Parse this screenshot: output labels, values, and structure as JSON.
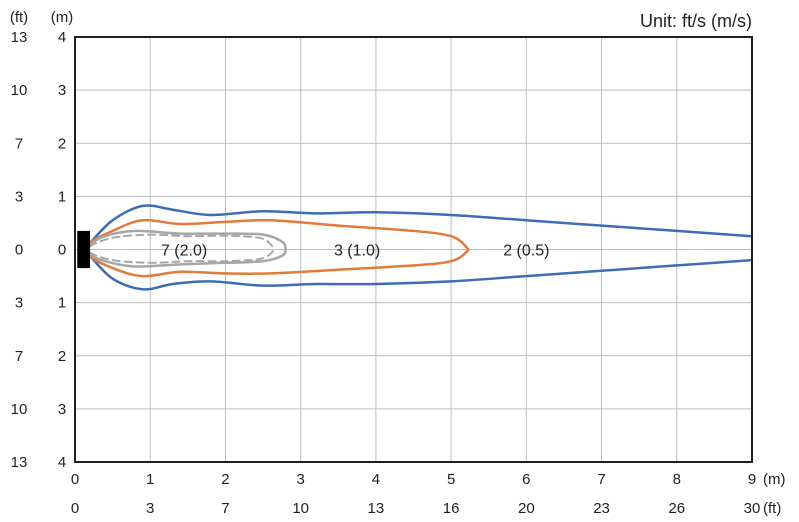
{
  "chart_data": {
    "type": "line",
    "title": "Unit: ft/s (m/s)",
    "x_axis": {
      "unit_primary": "(m)",
      "unit_secondary": "(ft)",
      "range": [
        0,
        9
      ],
      "ticks_m": [
        0,
        1,
        2,
        3,
        4,
        5,
        6,
        7,
        8,
        9
      ],
      "ticks_m_labels": [
        "0",
        "1",
        "2",
        "3",
        "4",
        "5",
        "6",
        "7",
        "8",
        "9"
      ],
      "ticks_ft_labels": [
        "0",
        "3",
        "7",
        "10",
        "13",
        "16",
        "20",
        "23",
        "26",
        "30"
      ]
    },
    "y_axis": {
      "unit_primary": "(m)",
      "unit_secondary": "(ft)",
      "range": [
        -4,
        4
      ],
      "ticks_m": [
        4,
        3,
        2,
        1,
        0,
        -1,
        -2,
        -3,
        -4
      ],
      "ticks_m_labels": [
        "4",
        "3",
        "2",
        "1",
        "0",
        "1",
        "2",
        "3",
        "4"
      ],
      "ticks_ft_labels": [
        "13",
        "10",
        "7",
        "3",
        "0",
        "3",
        "7",
        "10",
        "13"
      ]
    },
    "grid": true,
    "source": {
      "x": [
        0.03,
        0.2
      ],
      "y": [
        -0.35,
        0.35
      ],
      "color": "#000000"
    },
    "series": [
      {
        "name": "2 (0.5)",
        "color": "#3e6db5",
        "style": "solid",
        "closed": false,
        "label_at": [
          6.0,
          0.0
        ],
        "upper": [
          [
            0.2,
            0.12
          ],
          [
            0.5,
            0.55
          ],
          [
            0.9,
            0.82
          ],
          [
            1.3,
            0.75
          ],
          [
            1.8,
            0.65
          ],
          [
            2.5,
            0.72
          ],
          [
            3.2,
            0.68
          ],
          [
            4.0,
            0.7
          ],
          [
            5.0,
            0.65
          ],
          [
            6.0,
            0.55
          ],
          [
            7.0,
            0.45
          ],
          [
            8.0,
            0.35
          ],
          [
            9.0,
            0.25
          ]
        ],
        "lower": [
          [
            0.2,
            -0.12
          ],
          [
            0.5,
            -0.55
          ],
          [
            0.9,
            -0.75
          ],
          [
            1.3,
            -0.65
          ],
          [
            1.8,
            -0.6
          ],
          [
            2.5,
            -0.68
          ],
          [
            3.2,
            -0.65
          ],
          [
            4.0,
            -0.65
          ],
          [
            5.0,
            -0.6
          ],
          [
            6.0,
            -0.5
          ],
          [
            7.0,
            -0.4
          ],
          [
            8.0,
            -0.3
          ],
          [
            9.0,
            -0.2
          ]
        ]
      },
      {
        "name": "3 (1.0)",
        "color": "#e07b39",
        "style": "solid",
        "closed": true,
        "label_at": [
          3.75,
          0.0
        ],
        "outline": [
          [
            0.2,
            0.12
          ],
          [
            0.5,
            0.35
          ],
          [
            0.9,
            0.55
          ],
          [
            1.4,
            0.48
          ],
          [
            2.0,
            0.52
          ],
          [
            2.6,
            0.55
          ],
          [
            3.5,
            0.45
          ],
          [
            4.5,
            0.35
          ],
          [
            5.0,
            0.25
          ],
          [
            5.2,
            0.05
          ],
          [
            5.2,
            -0.05
          ],
          [
            5.0,
            -0.22
          ],
          [
            4.5,
            -0.3
          ],
          [
            3.5,
            -0.38
          ],
          [
            2.6,
            -0.45
          ],
          [
            2.0,
            -0.45
          ],
          [
            1.4,
            -0.42
          ],
          [
            0.9,
            -0.5
          ],
          [
            0.5,
            -0.35
          ],
          [
            0.2,
            -0.12
          ]
        ]
      },
      {
        "name": "7 (2.0)",
        "color": "#a6a6a6",
        "style": "solid",
        "closed": true,
        "label_at": [
          1.45,
          0.0
        ],
        "outline": [
          [
            0.2,
            0.08
          ],
          [
            0.4,
            0.25
          ],
          [
            0.8,
            0.35
          ],
          [
            1.4,
            0.3
          ],
          [
            2.0,
            0.3
          ],
          [
            2.5,
            0.28
          ],
          [
            2.75,
            0.15
          ],
          [
            2.8,
            0.0
          ],
          [
            2.75,
            -0.12
          ],
          [
            2.5,
            -0.22
          ],
          [
            2.0,
            -0.25
          ],
          [
            1.4,
            -0.28
          ],
          [
            0.8,
            -0.32
          ],
          [
            0.4,
            -0.22
          ],
          [
            0.2,
            -0.08
          ]
        ]
      },
      {
        "name": "7 (2.0) dashed",
        "color": "#a6a6a6",
        "style": "dashed",
        "closed": true,
        "outline": [
          [
            0.2,
            0.06
          ],
          [
            0.5,
            0.22
          ],
          [
            1.0,
            0.28
          ],
          [
            1.5,
            0.25
          ],
          [
            2.0,
            0.26
          ],
          [
            2.45,
            0.22
          ],
          [
            2.6,
            0.1
          ],
          [
            2.63,
            0.0
          ],
          [
            2.6,
            -0.08
          ],
          [
            2.45,
            -0.18
          ],
          [
            2.0,
            -0.22
          ],
          [
            1.5,
            -0.22
          ],
          [
            1.0,
            -0.25
          ],
          [
            0.5,
            -0.2
          ],
          [
            0.2,
            -0.06
          ]
        ]
      }
    ]
  }
}
